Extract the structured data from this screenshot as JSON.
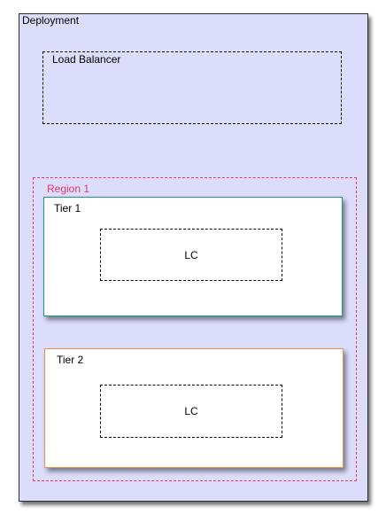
{
  "deployment": {
    "label": "Deployment"
  },
  "load_balancer": {
    "label": "Load Balancer"
  },
  "region": {
    "label": "Region 1",
    "color": "#e8396d"
  },
  "tiers": [
    {
      "label": "Tier 1",
      "border_color": "#1a9a8c",
      "lc": {
        "label": "LC"
      }
    },
    {
      "label": "Tier 2",
      "border_color": "#e99449",
      "lc": {
        "label": "LC"
      }
    }
  ],
  "colors": {
    "deployment_fill": "#dcdcfb",
    "tier_fill": "#ffffff"
  }
}
